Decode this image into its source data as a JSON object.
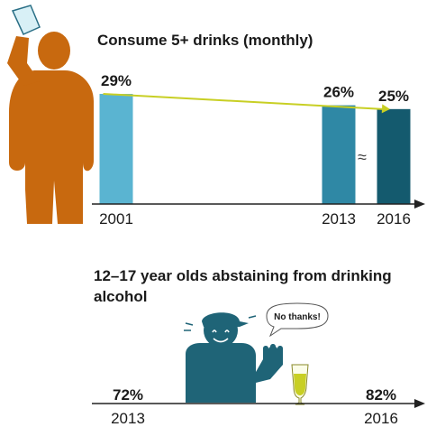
{
  "chart_data": [
    {
      "type": "bar",
      "title": "Consume 5+ drinks (monthly)",
      "categories": [
        "2001",
        "2013",
        "2016"
      ],
      "values": [
        29,
        26,
        25
      ],
      "data_labels": [
        "29%",
        "26%",
        "25%"
      ],
      "axis_break_symbol": "≈",
      "trend_arrow": {
        "from": "2001",
        "to": "2016"
      },
      "ylim": [
        0,
        29
      ],
      "grid": false,
      "legend": "none",
      "colors": {
        "bars": [
          "#5ab4d1",
          "#2f88a5",
          "#145a6e"
        ],
        "trend": "#c8cf24",
        "axis": "#222222"
      }
    },
    {
      "type": "line",
      "title": "12–17 year olds abstaining from drinking alcohol",
      "categories": [
        "2013",
        "2016"
      ],
      "values": [
        72,
        82
      ],
      "data_labels": [
        "72%",
        "82%"
      ],
      "grid": false,
      "legend": "none",
      "colors": {
        "axis": "#222222"
      }
    }
  ],
  "illustrations": {
    "drinker": {
      "icon": "person-drinking-icon",
      "color": "#c8690f"
    },
    "teen": {
      "icon": "teen-refusing-icon",
      "color": "#1f6477",
      "speech": "No thanks!"
    },
    "glass": {
      "icon": "beer-glass-icon",
      "color": "#c8cf24"
    }
  }
}
